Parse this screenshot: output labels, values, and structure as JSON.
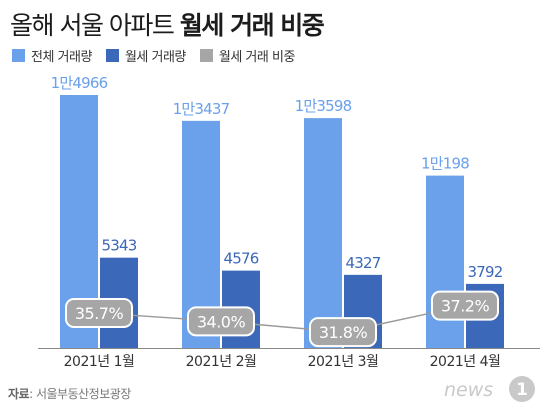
{
  "title": {
    "prefix": "올해 서울 아파트",
    "emphasis": "월세 거래 비중"
  },
  "legend": [
    {
      "label": "전체 거래량",
      "color": "#6aa1ea"
    },
    {
      "label": "월세 거래량",
      "color": "#3b68b8"
    },
    {
      "label": "월세 거래 비중",
      "color": "#a6a6a6"
    }
  ],
  "chart_data": {
    "type": "bar",
    "categories": [
      "2021년 1월",
      "2021년 2월",
      "2021년 3월",
      "2021년 4월"
    ],
    "series": [
      {
        "name": "전체 거래량",
        "values": [
          14966,
          13437,
          13598,
          10198
        ],
        "labels": [
          "1만4966",
          "1만3437",
          "1만3598",
          "1만198"
        ],
        "color": "#6aa1ea"
      },
      {
        "name": "월세 거래량",
        "values": [
          5343,
          4576,
          4327,
          3792
        ],
        "labels": [
          "5343",
          "4576",
          "4327",
          "3792"
        ],
        "color": "#3b68b8"
      },
      {
        "name": "월세 거래 비중",
        "type": "line",
        "values": [
          35.7,
          34.0,
          31.8,
          37.2
        ],
        "labels": [
          "35.7%",
          "34.0%",
          "31.8%",
          "37.2%"
        ],
        "color": "#a6a6a6"
      }
    ]
  },
  "source": {
    "label": "자료",
    "text": "서울부동산정보광장"
  },
  "logo": {
    "text": "news1"
  }
}
